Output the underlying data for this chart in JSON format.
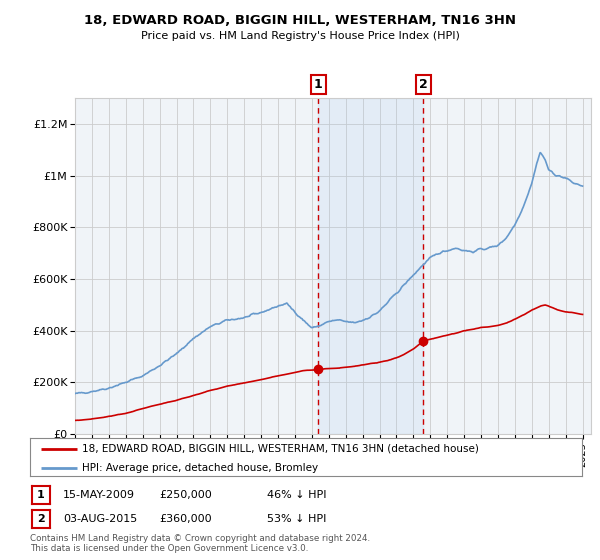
{
  "title": "18, EDWARD ROAD, BIGGIN HILL, WESTERHAM, TN16 3HN",
  "subtitle": "Price paid vs. HM Land Registry's House Price Index (HPI)",
  "ylim": [
    0,
    1300000
  ],
  "yticks": [
    0,
    200000,
    400000,
    600000,
    800000,
    1000000,
    1200000
  ],
  "ytick_labels": [
    "£0",
    "£200K",
    "£400K",
    "£600K",
    "£800K",
    "£1M",
    "£1.2M"
  ],
  "hpi_color": "#6699cc",
  "price_color": "#cc0000",
  "transaction1_year": 2009.37,
  "transaction1_price": 250000,
  "transaction2_year": 2015.58,
  "transaction2_price": 360000,
  "legend_line1": "18, EDWARD ROAD, BIGGIN HILL, WESTERHAM, TN16 3HN (detached house)",
  "legend_line2": "HPI: Average price, detached house, Bromley",
  "ann1_date": "15-MAY-2009",
  "ann1_price": "£250,000",
  "ann1_pct": "46% ↓ HPI",
  "ann2_date": "03-AUG-2015",
  "ann2_price": "£360,000",
  "ann2_pct": "53% ↓ HPI",
  "footer": "Contains HM Land Registry data © Crown copyright and database right 2024.\nThis data is licensed under the Open Government Licence v3.0.",
  "shade_start": 2009.37,
  "shade_end": 2015.58,
  "xlim_start": 1995,
  "xlim_end": 2025.5
}
